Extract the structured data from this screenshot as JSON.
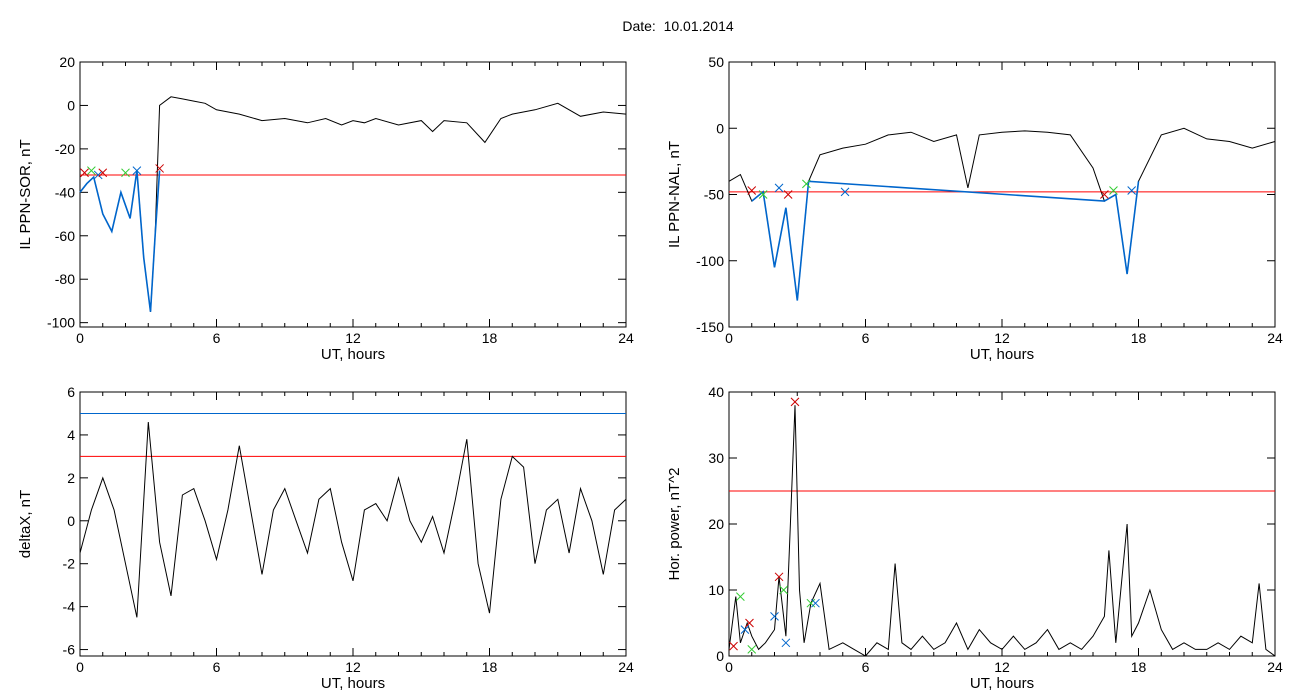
{
  "page": {
    "title": "Date:  10.01.2014"
  },
  "colors": {
    "axis": "#000000",
    "data": "#000000",
    "threshold": "#ff0000",
    "event": "#0066cc",
    "mark_red": "#cc0000",
    "mark_green": "#33cc33",
    "mark_blue": "#0066cc"
  },
  "chart_data": [
    {
      "type": "line",
      "id": "p1",
      "xlabel": "UT, hours",
      "ylabel": "IL PPN-SOR, nT",
      "xlim": [
        0,
        24
      ],
      "ylim": [
        -102,
        20
      ],
      "xticks": [
        0,
        6,
        12,
        18,
        24
      ],
      "yticks": [
        20,
        0,
        -20,
        -40,
        -60,
        -80,
        -100
      ],
      "threshold": -32,
      "series": [
        {
          "role": "signal",
          "x": [
            0,
            0.3,
            0.6,
            1.0,
            1.4,
            1.8,
            2.2,
            2.5,
            2.8,
            3.1,
            3.3,
            3.5,
            4.0,
            4.5,
            5.0,
            5.5,
            6.0,
            7.0,
            8.0,
            9.0,
            10.0,
            10.8,
            11.5,
            12.0,
            12.5,
            13.0,
            14.0,
            15.0,
            15.5,
            16.0,
            17.0,
            17.8,
            18.5,
            19.0,
            20.0,
            21.0,
            22.0,
            23.0,
            24.0
          ],
          "y": [
            -40,
            -36,
            -33,
            -50,
            -58,
            -40,
            -52,
            -30,
            -70,
            -95,
            -60,
            0,
            4,
            3,
            2,
            1,
            -2,
            -4,
            -7,
            -6,
            -8,
            -6,
            -9,
            -7,
            -8,
            -6,
            -9,
            -7,
            -12,
            -7,
            -8,
            -17,
            -6,
            -4,
            -2,
            1,
            -5,
            -3,
            -4
          ]
        },
        {
          "role": "event",
          "x": [
            0,
            0.3,
            0.6,
            1.0,
            1.4,
            1.8,
            2.2,
            2.5,
            2.8,
            3.1,
            3.3,
            3.5
          ],
          "y": [
            -40,
            -36,
            -33,
            -50,
            -58,
            -40,
            -52,
            -30,
            -70,
            -95,
            -60,
            -30
          ]
        }
      ],
      "markers_x": [
        0.2,
        0.5,
        0.8,
        1.0,
        2.0,
        2.5,
        3.5
      ],
      "markers_y": [
        -31,
        -30,
        -32,
        -31,
        -31,
        -30,
        -29
      ]
    },
    {
      "type": "line",
      "id": "p2",
      "xlabel": "UT, hours",
      "ylabel": "IL PPN-NAL, nT",
      "xlim": [
        0,
        24
      ],
      "ylim": [
        -150,
        50
      ],
      "xticks": [
        0,
        6,
        12,
        18,
        24
      ],
      "yticks": [
        50,
        0,
        -50,
        -100,
        -150
      ],
      "threshold": -48,
      "series": [
        {
          "role": "signal",
          "x": [
            0,
            0.5,
            1.0,
            1.5,
            2.0,
            2.5,
            3.0,
            3.5,
            4.0,
            5.0,
            6.0,
            7.0,
            8.0,
            9.0,
            10.0,
            10.5,
            11.0,
            12.0,
            13.0,
            14.0,
            15.0,
            16.0,
            16.5,
            17.0,
            17.5,
            18.0,
            19.0,
            20.0,
            21.0,
            22.0,
            23.0,
            24.0
          ],
          "y": [
            -40,
            -35,
            -55,
            -48,
            -105,
            -60,
            -130,
            -40,
            -20,
            -15,
            -12,
            -5,
            -3,
            -10,
            -5,
            -45,
            -5,
            -3,
            -2,
            -3,
            -5,
            -30,
            -55,
            -50,
            -110,
            -40,
            -5,
            0,
            -8,
            -10,
            -15,
            -10
          ]
        },
        {
          "role": "event",
          "x": [
            1.0,
            1.5,
            2.0,
            2.5,
            3.0,
            3.5,
            16.5,
            17.0,
            17.5,
            18.0
          ],
          "y": [
            -55,
            -48,
            -105,
            -60,
            -130,
            -40,
            -55,
            -50,
            -110,
            -40
          ]
        }
      ],
      "markers_x": [
        1.0,
        1.5,
        2.2,
        2.6,
        3.4,
        5.1,
        16.5,
        16.9,
        17.7
      ],
      "markers_y": [
        -47,
        -50,
        -45,
        -50,
        -42,
        -48,
        -50,
        -47,
        -47
      ]
    },
    {
      "type": "line",
      "id": "p3",
      "xlabel": "UT, hours",
      "ylabel": "deltaX, nT",
      "xlim": [
        0,
        24
      ],
      "ylim": [
        -6.3,
        6
      ],
      "xticks": [
        0,
        6,
        12,
        18,
        24
      ],
      "yticks": [
        6,
        4,
        2,
        0,
        -2,
        -4,
        -6
      ],
      "threshold": 3,
      "threshold2": 5,
      "series": [
        {
          "role": "signal",
          "x": [
            0,
            0.5,
            1.0,
            1.5,
            2.0,
            2.5,
            3.0,
            3.5,
            4.0,
            4.5,
            5.0,
            5.5,
            6.0,
            6.5,
            7.0,
            7.5,
            8.0,
            8.5,
            9.0,
            9.5,
            10.0,
            10.5,
            11.0,
            11.5,
            12.0,
            12.5,
            13.0,
            13.5,
            14.0,
            14.5,
            15.0,
            15.5,
            16.0,
            16.5,
            17.0,
            17.5,
            18.0,
            18.5,
            19.0,
            19.5,
            20.0,
            20.5,
            21.0,
            21.5,
            22.0,
            22.5,
            23.0,
            23.5,
            24.0
          ],
          "y": [
            -1.5,
            0.5,
            2.0,
            0.5,
            -2.0,
            -4.5,
            4.6,
            -1.0,
            -3.5,
            1.2,
            1.5,
            0.0,
            -1.8,
            0.5,
            3.5,
            0.5,
            -2.5,
            0.5,
            1.5,
            0.0,
            -1.5,
            1.0,
            1.5,
            -1.0,
            -2.8,
            0.5,
            0.8,
            0.0,
            2.0,
            0.0,
            -1.0,
            0.2,
            -1.5,
            1.0,
            3.8,
            -2.0,
            -4.3,
            1.0,
            3.0,
            2.5,
            -2.0,
            0.5,
            1.0,
            -1.5,
            1.5,
            0.0,
            -2.5,
            0.5,
            1.0
          ]
        }
      ]
    },
    {
      "type": "line",
      "id": "p4",
      "xlabel": "UT, hours",
      "ylabel": "Hor. power, nT^2",
      "xlim": [
        0,
        24
      ],
      "ylim": [
        0,
        40
      ],
      "xticks": [
        0,
        6,
        12,
        18,
        24
      ],
      "yticks": [
        0,
        10,
        20,
        30,
        40
      ],
      "threshold": 25,
      "series": [
        {
          "role": "signal",
          "x": [
            0,
            0.3,
            0.5,
            0.8,
            1.0,
            1.3,
            1.6,
            2.0,
            2.2,
            2.5,
            2.7,
            2.9,
            3.1,
            3.3,
            3.6,
            4.0,
            4.4,
            5.0,
            5.5,
            6.0,
            6.5,
            7.0,
            7.3,
            7.6,
            8.0,
            8.5,
            9.0,
            9.5,
            10.0,
            10.5,
            11.0,
            11.5,
            12.0,
            12.5,
            13.0,
            13.5,
            14.0,
            14.5,
            15.0,
            15.5,
            16.0,
            16.5,
            16.7,
            17.0,
            17.5,
            17.7,
            18.0,
            18.5,
            19.0,
            19.5,
            20.0,
            20.5,
            21.0,
            21.5,
            22.0,
            22.5,
            23.0,
            23.3,
            23.6,
            24.0
          ],
          "y": [
            1,
            9,
            2,
            5,
            3,
            1,
            2,
            4,
            12,
            3,
            20,
            38,
            10,
            2,
            8,
            11,
            1,
            2,
            1,
            0,
            2,
            1,
            14,
            2,
            1,
            3,
            1,
            2,
            5,
            1,
            4,
            2,
            1,
            3,
            1,
            2,
            4,
            1,
            2,
            1,
            3,
            6,
            16,
            2,
            20,
            3,
            5,
            10,
            4,
            1,
            2,
            1,
            1,
            2,
            1,
            3,
            2,
            11,
            1,
            0
          ]
        }
      ],
      "markers_x": [
        0.2,
        0.5,
        0.7,
        0.9,
        1.0,
        2.0,
        2.2,
        2.4,
        2.5,
        2.9,
        3.6,
        3.8
      ],
      "markers_y": [
        1.5,
        9,
        4,
        5,
        1,
        6,
        12,
        10,
        2,
        38.5,
        8,
        8
      ]
    }
  ]
}
